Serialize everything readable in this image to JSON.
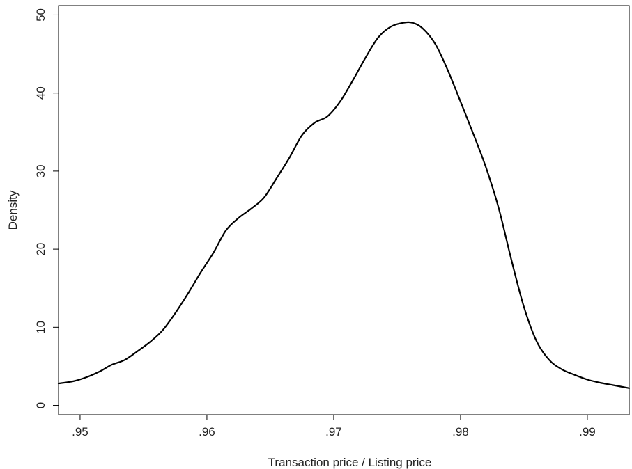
{
  "chart_data": {
    "type": "line",
    "title": "",
    "xlabel": "Transaction price / Listing price",
    "ylabel": "Density",
    "xlim": [
      0.9483,
      0.9933
    ],
    "ylim": [
      -1.2,
      51.2
    ],
    "xticks": [
      0.95,
      0.96,
      0.97,
      0.98,
      0.99
    ],
    "xtick_labels": [
      ".95",
      ".96",
      ".97",
      ".98",
      ".99"
    ],
    "yticks": [
      0,
      10,
      20,
      30,
      40,
      50
    ],
    "ytick_labels": [
      "0",
      "10",
      "20",
      "30",
      "40",
      "50"
    ],
    "grid": false,
    "legend": "none",
    "line_color": "#000000",
    "series": [
      {
        "x": [
          0.9483,
          0.9495,
          0.9505,
          0.9515,
          0.9525,
          0.9535,
          0.9545,
          0.9555,
          0.9565,
          0.9575,
          0.9585,
          0.9595,
          0.9605,
          0.9615,
          0.9625,
          0.9635,
          0.9645,
          0.9655,
          0.9665,
          0.9675,
          0.9685,
          0.9695,
          0.9705,
          0.9715,
          0.9725,
          0.9735,
          0.9745,
          0.9755,
          0.9762,
          0.977,
          0.978,
          0.979,
          0.98,
          0.981,
          0.982,
          0.983,
          0.984,
          0.985,
          0.986,
          0.987,
          0.988,
          0.989,
          0.99,
          0.991,
          0.992,
          0.9933
        ],
        "y": [
          2.8,
          3.1,
          3.6,
          4.3,
          5.2,
          5.8,
          6.9,
          8.1,
          9.6,
          11.8,
          14.3,
          17.0,
          19.5,
          22.4,
          24.0,
          25.2,
          26.6,
          29.1,
          31.7,
          34.6,
          36.2,
          37.0,
          38.9,
          41.6,
          44.5,
          47.1,
          48.5,
          49.0,
          49.0,
          48.3,
          46.3,
          42.9,
          38.9,
          34.8,
          30.5,
          25.3,
          18.7,
          12.6,
          8.2,
          5.8,
          4.6,
          3.9,
          3.3,
          2.9,
          2.6,
          2.2
        ]
      }
    ]
  }
}
